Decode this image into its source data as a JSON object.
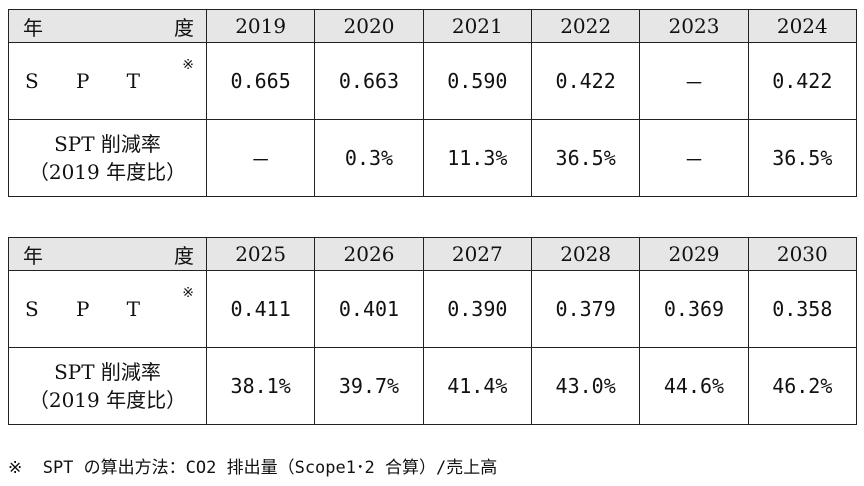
{
  "year_label_left": "年",
  "year_label_right": "度",
  "spt_label_chars": [
    "S",
    "P",
    "T"
  ],
  "spt_note_mark": "※",
  "rate_label_line1": "SPT 削減率",
  "rate_label_line2": "（2019 年度比）",
  "tables": [
    {
      "years": [
        "2019",
        "2020",
        "2021",
        "2022",
        "2023",
        "2024"
      ],
      "spt": [
        "0.665",
        "0.663",
        "0.590",
        "0.422",
        "－",
        "0.422"
      ],
      "rate": [
        "－",
        "0.3%",
        "11.3%",
        "36.5%",
        "－",
        "36.5%"
      ]
    },
    {
      "years": [
        "2025",
        "2026",
        "2027",
        "2028",
        "2029",
        "2030"
      ],
      "spt": [
        "0.411",
        "0.401",
        "0.390",
        "0.379",
        "0.369",
        "0.358"
      ],
      "rate": [
        "38.1%",
        "39.7%",
        "41.4%",
        "43.0%",
        "44.6%",
        "46.2%"
      ]
    }
  ],
  "footnote": "※  SPT の算出方法：CO2 排出量（Scope1･2 合算）/売上高"
}
